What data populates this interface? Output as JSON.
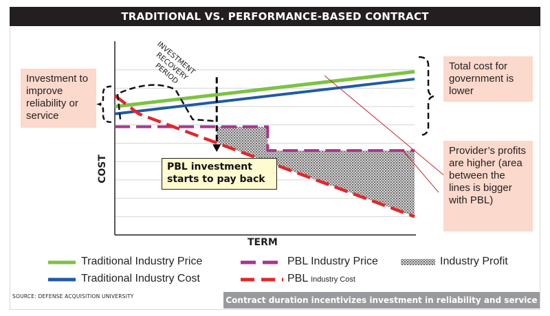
{
  "title": "TRADITIONAL VS. PERFORMANCE-BASED CONTRACT",
  "callouts": {
    "investment": "Investment to improve reliability or service",
    "total_cost": "Total cost for government is lower",
    "profits": "Provider’s profits are higher (area between the lines is bigger with PBL)",
    "payback": "PBL investment starts to pay back",
    "recovery": [
      "INVESTMENT",
      "RECOVERY",
      "PERIOD"
    ]
  },
  "legend": {
    "trad_price": "Traditional Industry Price",
    "trad_cost": "Traditional Industry Cost",
    "pbl_price": "PBL Industry Price",
    "pbl_cost_main": "PBL",
    "pbl_cost_sub": "Industry Cost",
    "profit": "Industry Profit"
  },
  "source": "SOURCE: DEFENSE ACQUISITION UNIVERSITY",
  "footer": "Contract duration incentivizes investment in reliability and service",
  "colors": {
    "trad_price": "#7dc242",
    "trad_cost": "#1f5aa6",
    "pbl_price": "#a7358e",
    "pbl_cost": "#e4262b",
    "callout_bg": "#fbd9cc",
    "title_bg": "#231f20",
    "footer_bg": "#999a9d"
  },
  "chart_data": {
    "type": "line",
    "xlabel": "TERM",
    "ylabel": "COST",
    "xlim": [
      0,
      10
    ],
    "ylim": [
      0,
      10
    ],
    "grid": true,
    "legend_position": "bottom",
    "note": "Conceptual chart without numeric tick labels; values are estimated in relative units.",
    "series": [
      {
        "name": "Traditional Industry Price",
        "style": "solid",
        "points": [
          [
            0,
            7.0
          ],
          [
            10,
            8.9
          ]
        ]
      },
      {
        "name": "Traditional Industry Cost",
        "style": "solid",
        "points": [
          [
            0,
            6.6
          ],
          [
            10,
            8.5
          ]
        ]
      },
      {
        "name": "PBL Industry Price",
        "style": "dashed",
        "points": [
          [
            0,
            5.9
          ],
          [
            3.4,
            5.9
          ],
          [
            5.1,
            5.9
          ],
          [
            5.1,
            4.6
          ],
          [
            10,
            4.6
          ]
        ]
      },
      {
        "name": "PBL Industry Cost",
        "style": "dashed",
        "points": [
          [
            0,
            7.6
          ],
          [
            0.8,
            6.6
          ],
          [
            10,
            1.0
          ]
        ]
      }
    ],
    "investment_recovery_period": [
      0,
      3.4
    ],
    "payback_point": 3.4
  }
}
